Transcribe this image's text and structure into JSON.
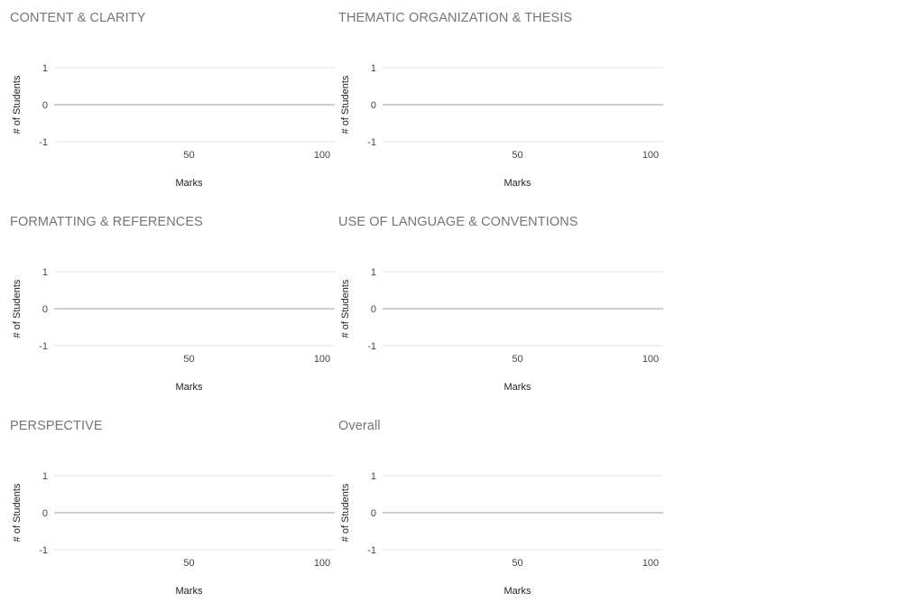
{
  "chart_data": [
    {
      "type": "histogram",
      "title": "CONTENT & CLARITY",
      "xlabel": "Marks",
      "ylabel": "# of Students",
      "xlim": [
        0,
        100
      ],
      "ylim": [
        -1,
        1
      ],
      "x_ticks": [
        50,
        100
      ],
      "y_ticks": [
        1,
        0,
        -1
      ],
      "grid": true,
      "series": []
    },
    {
      "type": "histogram",
      "title": "THEMATIC ORGANIZATION & THESIS",
      "xlabel": "Marks",
      "ylabel": "# of Students",
      "xlim": [
        0,
        100
      ],
      "ylim": [
        -1,
        1
      ],
      "x_ticks": [
        50,
        100
      ],
      "y_ticks": [
        1,
        0,
        -1
      ],
      "grid": true,
      "series": []
    },
    {
      "type": "histogram",
      "title": "FORMATTING & REFERENCES",
      "xlabel": "Marks",
      "ylabel": "# of Students",
      "xlim": [
        0,
        100
      ],
      "ylim": [
        -1,
        1
      ],
      "x_ticks": [
        50,
        100
      ],
      "y_ticks": [
        1,
        0,
        -1
      ],
      "grid": true,
      "series": []
    },
    {
      "type": "histogram",
      "title": "USE OF LANGUAGE & CONVENTIONS",
      "xlabel": "Marks",
      "ylabel": "# of Students",
      "xlim": [
        0,
        100
      ],
      "ylim": [
        -1,
        1
      ],
      "x_ticks": [
        50,
        100
      ],
      "y_ticks": [
        1,
        0,
        -1
      ],
      "grid": true,
      "series": []
    },
    {
      "type": "histogram",
      "title": "PERSPECTIVE",
      "xlabel": "Marks",
      "ylabel": "# of Students",
      "xlim": [
        0,
        100
      ],
      "ylim": [
        -1,
        1
      ],
      "x_ticks": [
        50,
        100
      ],
      "y_ticks": [
        1,
        0,
        -1
      ],
      "grid": true,
      "series": []
    },
    {
      "type": "histogram",
      "title": "Overall",
      "xlabel": "Marks",
      "ylabel": "# of Students",
      "xlim": [
        0,
        100
      ],
      "ylim": [
        -1,
        1
      ],
      "x_ticks": [
        50,
        100
      ],
      "y_ticks": [
        1,
        0,
        -1
      ],
      "grid": true,
      "series": []
    }
  ],
  "colors": {
    "title": "#757575",
    "gridline": "#e0e0e0",
    "baseline": "#bdbdbd",
    "tick_text": "#444444",
    "axis_title": "#222222"
  }
}
